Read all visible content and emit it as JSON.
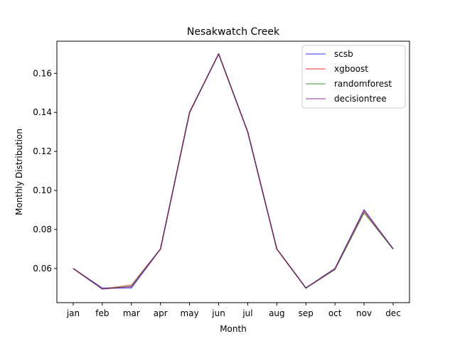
{
  "chart_data": {
    "type": "line",
    "title": "Nesakwatch Creek",
    "xlabel": "Month",
    "ylabel": "Monthly Distribution",
    "categories": [
      "jan",
      "feb",
      "mar",
      "apr",
      "may",
      "jun",
      "jul",
      "aug",
      "sep",
      "oct",
      "nov",
      "dec"
    ],
    "ylim": [
      0.0425,
      0.1765
    ],
    "yticks": [
      "0.06",
      "0.08",
      "0.10",
      "0.12",
      "0.14",
      "0.16"
    ],
    "grid": false,
    "legend_position": "top-right",
    "series": [
      {
        "name": "scsb",
        "color": "#0000ff",
        "values": [
          0.06,
          0.05,
          0.05,
          0.07,
          0.14,
          0.17,
          0.13,
          0.07,
          0.05,
          0.06,
          0.09,
          0.07
        ]
      },
      {
        "name": "xgboost",
        "color": "#ff0000",
        "values": [
          0.06,
          0.0495,
          0.0515,
          0.07,
          0.14,
          0.17,
          0.13,
          0.07,
          0.05,
          0.0595,
          0.089,
          0.07
        ]
      },
      {
        "name": "randomforest",
        "color": "#008000",
        "values": [
          0.06,
          0.0495,
          0.051,
          0.07,
          0.14,
          0.17,
          0.13,
          0.07,
          0.05,
          0.0595,
          0.0885,
          0.07
        ]
      },
      {
        "name": "decisiontree",
        "color": "#800080",
        "values": [
          0.06,
          0.0495,
          0.0505,
          0.07,
          0.14,
          0.17,
          0.13,
          0.07,
          0.05,
          0.06,
          0.09,
          0.07
        ]
      }
    ]
  }
}
